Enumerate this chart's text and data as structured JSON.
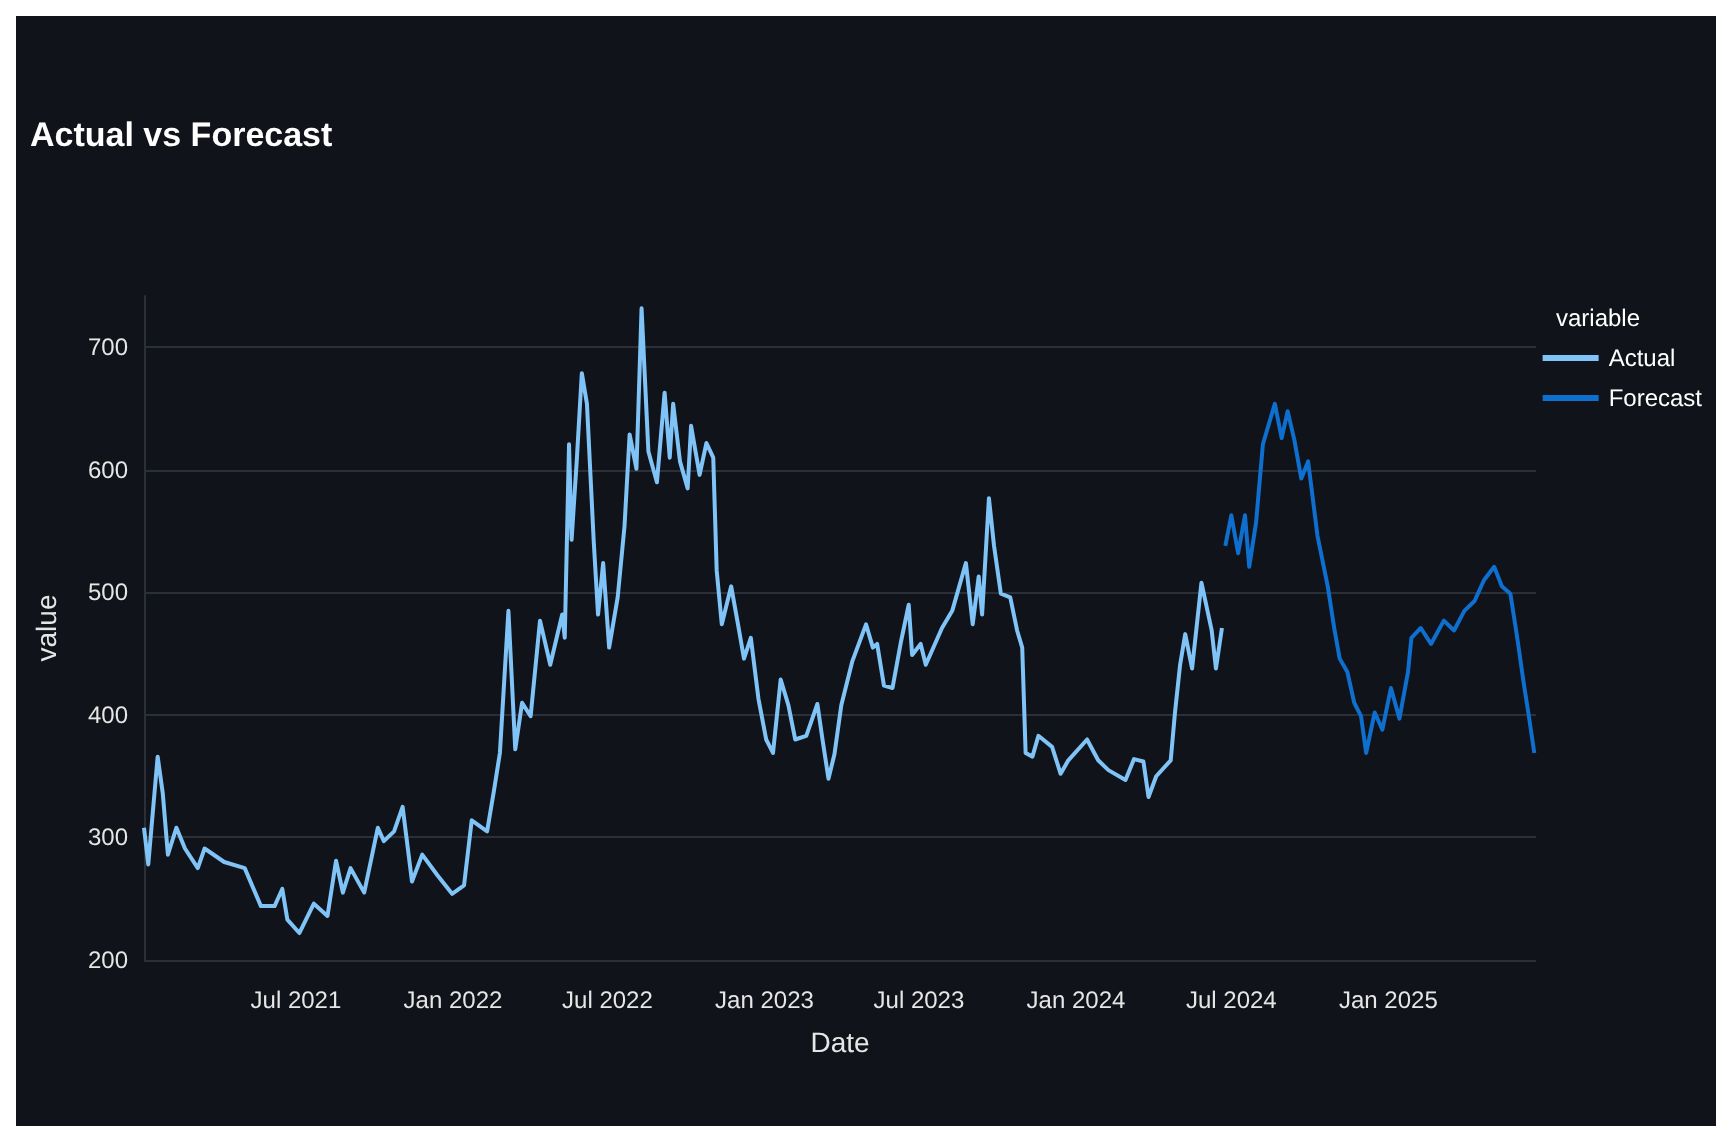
{
  "chart_data": {
    "type": "line",
    "title": "Actual vs Forecast",
    "xlabel": "Date",
    "ylabel": "value",
    "legend_title": "variable",
    "legend": "top right",
    "grid": "y",
    "marker": "none",
    "line_style": "solid",
    "xlim": [
      "2021-01-04",
      "2025-06-23"
    ],
    "ylim": [
      200,
      742
    ],
    "yticks": [
      200,
      300,
      400,
      500,
      600,
      700
    ],
    "xticks": [
      {
        "value": "2021-07-01",
        "label": "Jul 2021"
      },
      {
        "value": "2022-01-01",
        "label": "Jan 2022"
      },
      {
        "value": "2022-07-01",
        "label": "Jul 2022"
      },
      {
        "value": "2023-01-01",
        "label": "Jan 2023"
      },
      {
        "value": "2023-07-01",
        "label": "Jul 2023"
      },
      {
        "value": "2024-01-01",
        "label": "Jan 2024"
      },
      {
        "value": "2024-07-01",
        "label": "Jul 2024"
      },
      {
        "value": "2025-01-01",
        "label": "Jan 2025"
      }
    ],
    "series": [
      {
        "name": "Actual",
        "color": "#7fc3f7",
        "x": [
          "2021-01-04",
          "2021-01-09",
          "2021-01-20",
          "2021-01-26",
          "2021-02-01",
          "2021-02-11",
          "2021-02-21",
          "2021-03-08",
          "2021-03-16",
          "2021-04-08",
          "2021-05-02",
          "2021-05-21",
          "2021-06-06",
          "2021-06-15",
          "2021-06-21",
          "2021-07-05",
          "2021-07-22",
          "2021-08-07",
          "2021-08-17",
          "2021-08-25",
          "2021-09-03",
          "2021-09-19",
          "2021-10-05",
          "2021-10-12",
          "2021-10-24",
          "2021-11-03",
          "2021-11-14",
          "2021-11-26",
          "2021-12-14",
          "2021-12-31",
          "2022-01-14",
          "2022-01-23",
          "2022-02-10",
          "2022-02-18",
          "2022-02-25",
          "2022-03-07",
          "2022-03-15",
          "2022-03-23",
          "2022-04-02",
          "2022-04-13",
          "2022-04-25",
          "2022-05-09",
          "2022-05-12",
          "2022-05-17",
          "2022-05-20",
          "2022-05-26",
          "2022-06-01",
          "2022-06-07",
          "2022-06-15",
          "2022-06-20",
          "2022-06-26",
          "2022-07-03",
          "2022-07-13",
          "2022-07-21",
          "2022-07-27",
          "2022-08-04",
          "2022-08-10",
          "2022-08-18",
          "2022-08-28",
          "2022-09-06",
          "2022-09-12",
          "2022-09-16",
          "2022-09-24",
          "2022-10-03",
          "2022-10-07",
          "2022-10-17",
          "2022-10-25",
          "2022-11-02",
          "2022-11-06",
          "2022-11-12",
          "2022-11-23",
          "2022-12-01",
          "2022-12-08",
          "2022-12-16",
          "2022-12-25",
          "2023-01-03",
          "2023-01-11",
          "2023-01-20",
          "2023-01-29",
          "2023-02-06",
          "2023-02-19",
          "2023-03-04",
          "2023-03-10",
          "2023-03-17",
          "2023-03-24",
          "2023-04-01",
          "2023-04-14",
          "2023-04-30",
          "2023-05-08",
          "2023-05-13",
          "2023-05-21",
          "2023-05-31",
          "2023-06-10",
          "2023-06-19",
          "2023-06-23",
          "2023-07-03",
          "2023-07-09",
          "2023-07-28",
          "2023-08-09",
          "2023-08-25",
          "2023-09-02",
          "2023-09-09",
          "2023-09-13",
          "2023-09-21",
          "2023-09-27",
          "2023-10-05",
          "2023-10-16",
          "2023-10-24",
          "2023-10-30",
          "2023-11-03",
          "2023-11-11",
          "2023-11-18",
          "2023-12-04",
          "2023-12-14",
          "2023-12-23",
          "2024-01-14",
          "2024-01-27",
          "2024-02-08",
          "2024-02-28",
          "2024-03-09",
          "2024-03-20",
          "2024-03-26",
          "2024-04-04",
          "2024-04-21",
          "2024-04-26",
          "2024-05-02",
          "2024-05-08",
          "2024-05-16",
          "2024-05-27",
          "2024-06-08",
          "2024-06-13",
          "2024-06-20"
        ],
        "values": [
          308,
          278,
          366,
          336,
          286,
          308,
          291,
          275,
          291,
          280,
          275,
          244,
          244,
          258,
          233,
          222,
          246,
          236,
          281,
          255,
          275,
          255,
          308,
          297,
          305,
          325,
          264,
          286,
          269,
          254,
          261,
          314,
          305,
          338,
          369,
          485,
          372,
          410,
          399,
          477,
          441,
          482,
          463,
          621,
          543,
          607,
          679,
          654,
          541,
          482,
          524,
          455,
          496,
          554,
          629,
          601,
          732,
          615,
          590,
          663,
          610,
          654,
          607,
          585,
          636,
          596,
          622,
          610,
          518,
          474,
          505,
          474,
          446,
          463,
          413,
          380,
          369,
          429,
          408,
          380,
          383,
          409,
          380,
          348,
          368,
          408,
          444,
          474,
          455,
          458,
          424,
          422,
          460,
          490,
          449,
          458,
          441,
          471,
          485,
          524,
          474,
          513,
          482,
          577,
          538,
          499,
          496,
          469,
          455,
          369,
          366,
          383,
          374,
          352,
          363,
          380,
          363,
          355,
          347,
          364,
          362,
          333,
          350,
          363,
          402,
          441,
          466,
          438,
          508,
          469,
          438,
          471
        ]
      },
      {
        "name": "Forecast",
        "color": "#0e6fcf",
        "x": [
          "2024-06-24",
          "2024-07-01",
          "2024-07-09",
          "2024-07-17",
          "2024-07-22",
          "2024-07-30",
          "2024-08-07",
          "2024-08-21",
          "2024-08-29",
          "2024-09-05",
          "2024-09-13",
          "2024-09-21",
          "2024-09-29",
          "2024-10-10",
          "2024-10-22",
          "2024-10-30",
          "2024-11-05",
          "2024-11-14",
          "2024-11-22",
          "2024-11-30",
          "2024-12-06",
          "2024-12-16",
          "2024-12-25",
          "2025-01-04",
          "2025-01-14",
          "2025-01-24",
          "2025-01-28",
          "2025-02-08",
          "2025-02-20",
          "2025-03-07",
          "2025-03-19",
          "2025-03-31",
          "2025-04-12",
          "2025-04-23",
          "2025-05-05",
          "2025-05-14",
          "2025-05-24",
          "2025-06-01",
          "2025-06-09",
          "2025-06-14",
          "2025-06-21"
        ],
        "values": [
          538,
          563,
          532,
          563,
          521,
          557,
          621,
          654,
          626,
          648,
          624,
          593,
          607,
          546,
          505,
          469,
          446,
          435,
          410,
          399,
          369,
          402,
          388,
          422,
          397,
          435,
          463,
          471,
          458,
          477,
          469,
          485,
          493,
          510,
          521,
          505,
          499,
          463,
          424,
          402,
          369
        ]
      }
    ]
  }
}
